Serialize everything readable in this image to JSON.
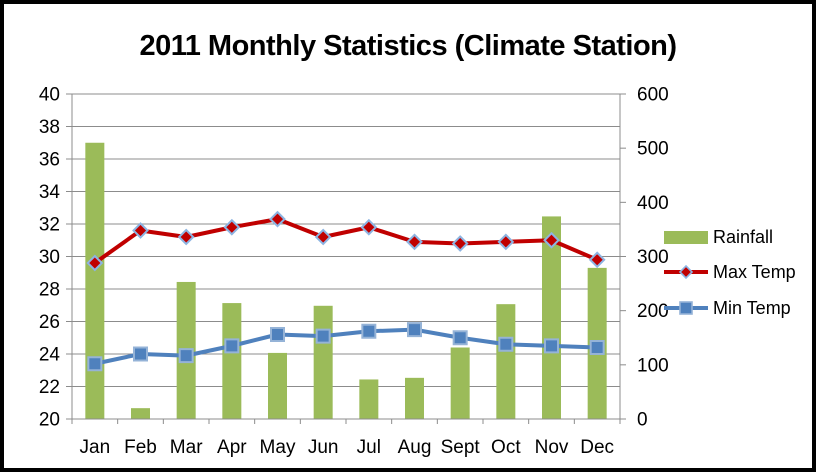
{
  "title": "2011 Monthly Statistics (Climate Station)",
  "colors": {
    "rainfall_green": "#9BBB59",
    "max_temp_red": "#C00000",
    "min_temp_blue": "#4F81BD",
    "marker_edge_blue": "#95B3D7",
    "gridline_gray": "#8C8C8C",
    "axis_text": "#000000",
    "frame_black": "#000000",
    "background": "#FFFFFF"
  },
  "chart_data": {
    "type": "combo-bar-line",
    "title": "2011 Monthly Statistics (Climate Station)",
    "categories": [
      "Jan",
      "Feb",
      "Mar",
      "Apr",
      "May",
      "Jun",
      "Jul",
      "Aug",
      "Sept",
      "Oct",
      "Nov",
      "Dec"
    ],
    "series": [
      {
        "name": "Rainfall",
        "type": "bar",
        "axis": "right",
        "color": "#9BBB59",
        "values": [
          510,
          20,
          253,
          214,
          122,
          209,
          73,
          76,
          132,
          212,
          374,
          279
        ]
      },
      {
        "name": "Max Temp",
        "type": "line",
        "marker": "diamond",
        "axis": "left",
        "color": "#C00000",
        "marker_edge": "#8DB4E2",
        "values": [
          29.6,
          31.6,
          31.2,
          31.8,
          32.3,
          31.2,
          31.8,
          30.9,
          30.8,
          30.9,
          31.0,
          29.8
        ]
      },
      {
        "name": "Min Temp",
        "type": "line",
        "marker": "square",
        "axis": "left",
        "color": "#4F81BD",
        "marker_edge": "#95B3D7",
        "values": [
          23.4,
          24.0,
          23.9,
          24.5,
          25.2,
          25.1,
          25.4,
          25.5,
          25.0,
          24.6,
          24.5,
          24.4
        ]
      }
    ],
    "left_axis": {
      "min": 20,
      "max": 40,
      "step": 2,
      "tick_labels": [
        "20",
        "22",
        "24",
        "26",
        "28",
        "30",
        "32",
        "34",
        "36",
        "38",
        "40"
      ]
    },
    "right_axis": {
      "min": 0,
      "max": 600,
      "step": 100,
      "tick_labels": [
        "0",
        "100",
        "200",
        "300",
        "400",
        "500",
        "600"
      ]
    },
    "grid": true,
    "legend_position": "right"
  }
}
